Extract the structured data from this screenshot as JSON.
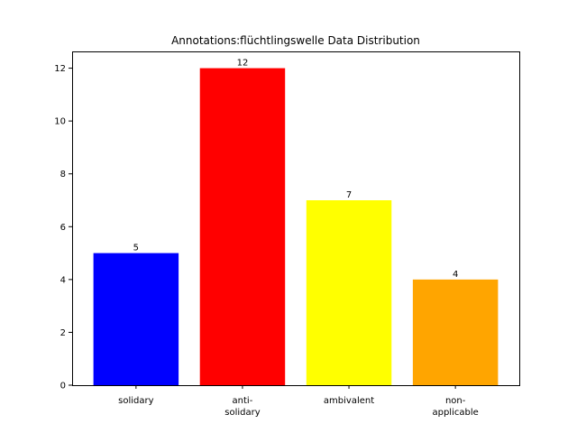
{
  "chart_data": {
    "type": "bar",
    "title": "Annotations:flüchtlingswelle Data Distribution",
    "xlabel": "",
    "ylabel": "",
    "categories": [
      [
        "solidary"
      ],
      [
        "anti-",
        "solidary"
      ],
      [
        "ambivalent"
      ],
      [
        "non-",
        "applicable"
      ]
    ],
    "values": [
      5,
      12,
      7,
      4
    ],
    "colors": [
      "#0000ff",
      "#ff0000",
      "#ffff00",
      "#ffa500"
    ],
    "ylim": [
      0,
      12.6
    ],
    "yticks": [
      0,
      2,
      4,
      6,
      8,
      10,
      12
    ],
    "grid": false,
    "legend": false
  }
}
